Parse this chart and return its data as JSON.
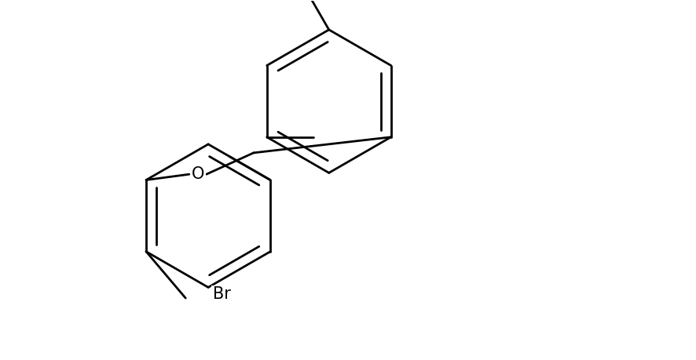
{
  "background_color": "#ffffff",
  "line_color": "#000000",
  "line_width": 2.0,
  "figsize": [
    8.86,
    4.59
  ],
  "dpi": 100
}
